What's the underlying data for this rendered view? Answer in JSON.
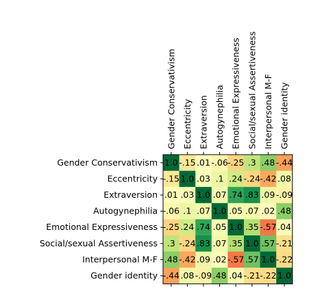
{
  "chart_data": {
    "type": "heatmap",
    "title": "",
    "xlabel": "",
    "ylabel": "",
    "labels": [
      "Gender Conservativism",
      "Eccentricity",
      "Extraversion",
      "Autogynephilia",
      "Emotional Expressiveness",
      "Social/sexual Assertiveness",
      "Interpersonal M-F",
      "Gender identity"
    ],
    "values": [
      [
        1.0,
        -0.15,
        0.01,
        -0.06,
        -0.25,
        0.3,
        0.48,
        -0.44
      ],
      [
        -0.15,
        1.0,
        0.03,
        0.1,
        0.24,
        -0.24,
        -0.42,
        0.08
      ],
      [
        0.01,
        0.03,
        1.0,
        0.07,
        0.74,
        0.83,
        0.09,
        -0.09
      ],
      [
        -0.06,
        0.1,
        0.07,
        1.0,
        0.05,
        0.07,
        0.02,
        0.48
      ],
      [
        -0.25,
        0.24,
        0.74,
        0.05,
        1.0,
        0.35,
        -0.57,
        0.04
      ],
      [
        0.3,
        -0.24,
        0.83,
        0.07,
        0.35,
        1.0,
        0.57,
        -0.21
      ],
      [
        0.48,
        -0.42,
        0.09,
        0.02,
        -0.57,
        0.57,
        1.0,
        -0.22
      ],
      [
        -0.44,
        0.08,
        -0.09,
        0.48,
        0.04,
        -0.21,
        -0.22,
        1.0
      ]
    ],
    "cell_labels": [
      [
        "1.0",
        "-.15",
        ".01",
        "-.06",
        "-.25",
        ".3",
        ".48",
        "-.44"
      ],
      [
        "-.15",
        "1.0",
        ".03",
        ".1",
        ".24",
        "-.24",
        "-.42",
        ".08"
      ],
      [
        ".01",
        ".03",
        "1.0",
        ".07",
        ".74",
        ".83",
        ".09",
        "-.09"
      ],
      [
        "-.06",
        ".1",
        ".07",
        "1.0",
        ".05",
        ".07",
        ".02",
        ".48"
      ],
      [
        "-.25",
        ".24",
        ".74",
        ".05",
        "1.0",
        ".35",
        "-.57",
        ".04"
      ],
      [
        ".3",
        "-.24",
        ".83",
        ".07",
        ".35",
        "1.0",
        ".57",
        "-.21"
      ],
      [
        ".48",
        "-.42",
        ".09",
        ".02",
        "-.57",
        ".57",
        "1.0",
        "-.22"
      ],
      [
        "-.44",
        ".08",
        "-.09",
        ".48",
        ".04",
        "-.21",
        "-.22",
        "1.0"
      ]
    ],
    "x_tick_labels_position": "top",
    "x_tick_labels_rotation_deg": 90,
    "colormap": "RdYlGn",
    "color_range": [
      -1,
      1
    ],
    "grid": false,
    "colorbar": false
  }
}
